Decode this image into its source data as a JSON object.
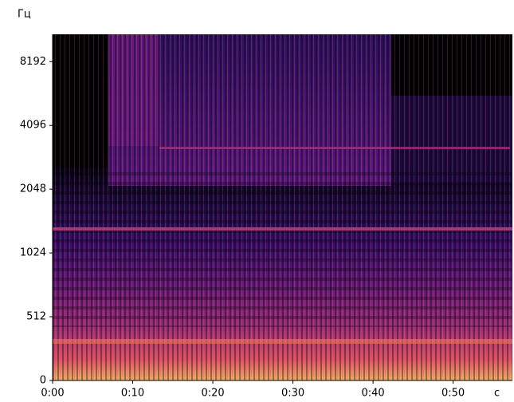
{
  "chart_data": {
    "type": "spectrogram",
    "y_label": "Гц",
    "x_label": "с",
    "yscale": "symlog",
    "linthresh": 512,
    "ylim": [
      0,
      11025
    ],
    "yticks": [
      0,
      512,
      1024,
      2048,
      4096,
      8192
    ],
    "xlim": [
      0,
      57.4
    ],
    "xticks": [
      {
        "value": 0,
        "label": "0:00"
      },
      {
        "value": 10,
        "label": "0:10"
      },
      {
        "value": 20,
        "label": "0:20"
      },
      {
        "value": 30,
        "label": "0:30"
      },
      {
        "value": 40,
        "label": "0:40"
      },
      {
        "value": 50,
        "label": "0:50"
      }
    ]
  }
}
